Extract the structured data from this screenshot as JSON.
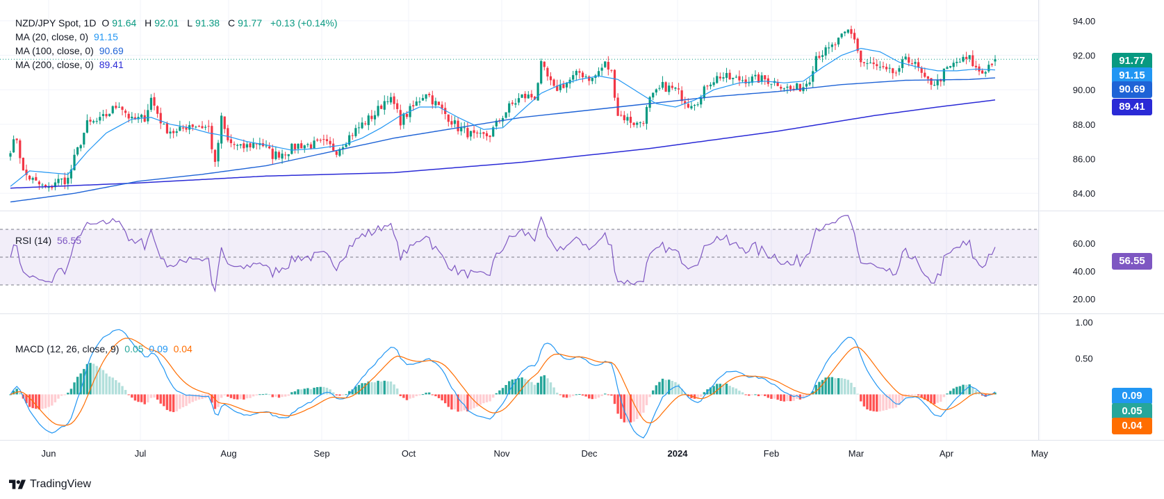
{
  "header": {
    "symbol": "NZD/JPY Spot, 1D",
    "ohlc": {
      "open_label": "O",
      "open": "91.64",
      "high_label": "H",
      "high": "92.01",
      "low_label": "L",
      "low": "91.38",
      "close_label": "C",
      "close": "91.77",
      "change": "+0.13 (+0.14%)"
    },
    "ma20": {
      "label": "MA (20, close, 0)",
      "value": "91.15",
      "color": "#2196f3"
    },
    "ma100": {
      "label": "MA (100, close, 0)",
      "value": "90.69",
      "color": "#1e63d6"
    },
    "ma200": {
      "label": "MA (200, close, 0)",
      "value": "89.41",
      "color": "#2a2ad6"
    }
  },
  "rsi_panel": {
    "label": "RSI (14)",
    "value": "56.55",
    "color": "#7e57c2"
  },
  "macd_panel": {
    "label": "MACD (12, 26, close, 9)",
    "histogram": "0.05",
    "macd": "0.09",
    "signal": "0.04",
    "hist_color": "#26a69a",
    "macd_color": "#2196f3",
    "signal_color": "#ff6d00"
  },
  "price_badges": {
    "last": {
      "text": "91.77",
      "color": "#089981"
    },
    "ma20": {
      "text": "91.15",
      "color": "#2196f3"
    },
    "ma100": {
      "text": "90.69",
      "color": "#1e63d6"
    },
    "ma200": {
      "text": "89.41",
      "color": "#2a2ad6"
    }
  },
  "indicator_badges": {
    "rsi": {
      "text": "56.55",
      "color": "#7e57c2"
    },
    "macd": {
      "text": "0.09",
      "color": "#2196f3"
    },
    "hist": {
      "text": "0.05",
      "color": "#26a69a"
    },
    "signal": {
      "text": "0.04",
      "color": "#ff6d00"
    }
  },
  "brand": "TradingView",
  "chart_data": {
    "type": "candlestick",
    "title": "NZD/JPY Spot, 1D",
    "x_axis_labels": [
      "Jun",
      "Jul",
      "Aug",
      "Sep",
      "Oct",
      "Nov",
      "Dec",
      "2024",
      "Feb",
      "Mar",
      "Apr",
      "May"
    ],
    "y_axis_price": {
      "ticks": [
        "84.00",
        "86.00",
        "88.00",
        "90.00",
        "92.00",
        "94.00"
      ],
      "range": [
        83.0,
        94.8
      ]
    },
    "y_axis_rsi": {
      "ticks": [
        "20.00",
        "40.00",
        "60.00"
      ],
      "range": [
        10,
        82
      ],
      "bands": [
        30,
        50,
        70
      ]
    },
    "y_axis_macd": {
      "ticks": [
        "0.50",
        "1.00"
      ],
      "range": [
        -0.62,
        1.1
      ]
    },
    "close_anchors": [
      [
        0,
        86.6
      ],
      [
        2,
        87.2
      ],
      [
        4,
        85.2
      ],
      [
        8,
        84.6
      ],
      [
        12,
        84.2
      ],
      [
        14,
        84.7
      ],
      [
        18,
        84.8
      ],
      [
        20,
        86.0
      ],
      [
        24,
        88.0
      ],
      [
        28,
        88.2
      ],
      [
        34,
        89.2
      ],
      [
        38,
        88.2
      ],
      [
        42,
        88.4
      ],
      [
        44,
        89.5
      ],
      [
        48,
        87.8
      ],
      [
        52,
        87.5
      ],
      [
        56,
        88.0
      ],
      [
        62,
        87.8
      ],
      [
        64,
        85.6
      ],
      [
        66,
        88.3
      ],
      [
        68,
        87.0
      ],
      [
        72,
        86.6
      ],
      [
        78,
        87.0
      ],
      [
        82,
        86.2
      ],
      [
        86,
        86.4
      ],
      [
        90,
        86.8
      ],
      [
        94,
        86.8
      ],
      [
        98,
        86.9
      ],
      [
        102,
        86.5
      ],
      [
        106,
        87.3
      ],
      [
        110,
        88.0
      ],
      [
        114,
        88.6
      ],
      [
        118,
        89.6
      ],
      [
        120,
        89.1
      ],
      [
        122,
        88.2
      ],
      [
        126,
        89.0
      ],
      [
        130,
        89.9
      ],
      [
        132,
        89.4
      ],
      [
        136,
        88.6
      ],
      [
        140,
        87.8
      ],
      [
        146,
        87.2
      ],
      [
        150,
        87.4
      ],
      [
        152,
        88.0
      ],
      [
        156,
        89.0
      ],
      [
        160,
        89.6
      ],
      [
        164,
        89.6
      ],
      [
        166,
        91.4
      ],
      [
        170,
        90.0
      ],
      [
        174,
        90.4
      ],
      [
        178,
        91.0
      ],
      [
        182,
        90.6
      ],
      [
        186,
        91.5
      ],
      [
        188,
        91.0
      ],
      [
        190,
        88.6
      ],
      [
        194,
        88.2
      ],
      [
        196,
        88.0
      ],
      [
        198,
        88.3
      ],
      [
        200,
        89.4
      ],
      [
        204,
        90.2
      ],
      [
        208,
        90.0
      ],
      [
        212,
        89.2
      ],
      [
        216,
        89.5
      ],
      [
        218,
        90.4
      ],
      [
        222,
        90.8
      ],
      [
        226,
        90.6
      ],
      [
        230,
        90.6
      ],
      [
        236,
        90.6
      ],
      [
        240,
        90.4
      ],
      [
        244,
        90.0
      ],
      [
        248,
        90.2
      ],
      [
        250,
        90.7
      ],
      [
        252,
        92.0
      ],
      [
        256,
        92.3
      ],
      [
        260,
        93.0
      ],
      [
        262,
        93.4
      ],
      [
        264,
        93.0
      ],
      [
        266,
        91.6
      ],
      [
        270,
        91.4
      ],
      [
        274,
        91.0
      ],
      [
        278,
        91.0
      ],
      [
        280,
        92.0
      ],
      [
        284,
        91.2
      ],
      [
        286,
        90.5
      ],
      [
        290,
        90.4
      ],
      [
        292,
        91.0
      ],
      [
        296,
        91.6
      ],
      [
        300,
        91.8
      ],
      [
        302,
        91.2
      ],
      [
        304,
        91.0
      ],
      [
        306,
        91.4
      ],
      [
        308,
        91.77
      ]
    ],
    "ma20_anchors": [
      [
        0,
        84.4
      ],
      [
        6,
        85.3
      ],
      [
        12,
        85.2
      ],
      [
        18,
        85.1
      ],
      [
        24,
        86.4
      ],
      [
        30,
        87.5
      ],
      [
        38,
        88.3
      ],
      [
        44,
        88.4
      ],
      [
        50,
        88.0
      ],
      [
        56,
        87.8
      ],
      [
        62,
        87.5
      ],
      [
        68,
        87.3
      ],
      [
        74,
        87.0
      ],
      [
        80,
        86.8
      ],
      [
        88,
        86.5
      ],
      [
        96,
        86.6
      ],
      [
        104,
        86.8
      ],
      [
        110,
        87.2
      ],
      [
        116,
        87.8
      ],
      [
        122,
        88.5
      ],
      [
        128,
        89.0
      ],
      [
        134,
        89.0
      ],
      [
        140,
        88.4
      ],
      [
        148,
        87.7
      ],
      [
        154,
        87.8
      ],
      [
        160,
        88.8
      ],
      [
        166,
        89.8
      ],
      [
        172,
        90.3
      ],
      [
        178,
        90.6
      ],
      [
        184,
        90.8
      ],
      [
        190,
        90.6
      ],
      [
        196,
        89.9
      ],
      [
        202,
        89.2
      ],
      [
        208,
        89.0
      ],
      [
        214,
        89.4
      ],
      [
        220,
        90.0
      ],
      [
        228,
        90.4
      ],
      [
        236,
        90.5
      ],
      [
        242,
        90.4
      ],
      [
        248,
        90.5
      ],
      [
        254,
        91.3
      ],
      [
        260,
        92.0
      ],
      [
        266,
        92.4
      ],
      [
        272,
        92.2
      ],
      [
        278,
        91.6
      ],
      [
        284,
        91.3
      ],
      [
        290,
        91.1
      ],
      [
        296,
        91.1
      ],
      [
        302,
        91.2
      ],
      [
        308,
        91.15
      ]
    ],
    "ma100_anchors": [
      [
        0,
        83.5
      ],
      [
        20,
        84.0
      ],
      [
        40,
        84.7
      ],
      [
        60,
        85.1
      ],
      [
        80,
        85.6
      ],
      [
        100,
        86.4
      ],
      [
        120,
        87.2
      ],
      [
        140,
        87.8
      ],
      [
        160,
        88.4
      ],
      [
        180,
        88.8
      ],
      [
        200,
        89.2
      ],
      [
        220,
        89.6
      ],
      [
        240,
        89.9
      ],
      [
        260,
        90.3
      ],
      [
        280,
        90.55
      ],
      [
        300,
        90.6
      ],
      [
        308,
        90.69
      ]
    ],
    "ma200_anchors": [
      [
        0,
        84.3
      ],
      [
        40,
        84.6
      ],
      [
        80,
        85.0
      ],
      [
        120,
        85.2
      ],
      [
        160,
        85.8
      ],
      [
        200,
        86.6
      ],
      [
        240,
        87.6
      ],
      [
        270,
        88.5
      ],
      [
        290,
        89.0
      ],
      [
        308,
        89.41
      ]
    ]
  }
}
